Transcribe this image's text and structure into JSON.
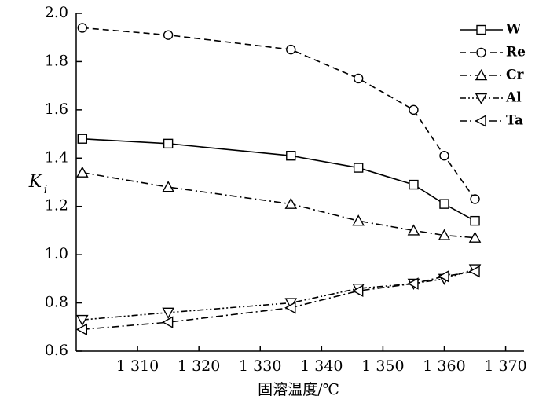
{
  "chart_data": {
    "type": "line",
    "x_label": "固溶温度/℃",
    "y_label": "K",
    "y_label_sub": "i",
    "x": [
      1301,
      1315,
      1335,
      1346,
      1355,
      1360,
      1365
    ],
    "series": [
      {
        "name": "W",
        "color": "#000000",
        "marker": "square",
        "dash": "solid",
        "values": [
          1.48,
          1.46,
          1.41,
          1.36,
          1.29,
          1.21,
          1.14
        ]
      },
      {
        "name": "Re",
        "color": "#000000",
        "marker": "circle",
        "dash": "dashed",
        "values": [
          1.94,
          1.91,
          1.85,
          1.73,
          1.6,
          1.41,
          1.23
        ]
      },
      {
        "name": "Cr",
        "color": "#000000",
        "marker": "triangle-up",
        "dash": "dash-dot",
        "values": [
          1.34,
          1.28,
          1.21,
          1.14,
          1.1,
          1.08,
          1.07
        ]
      },
      {
        "name": "Al",
        "color": "#000000",
        "marker": "triangle-down",
        "dash": "dash-dot-dot",
        "values": [
          0.73,
          0.76,
          0.8,
          0.86,
          0.88,
          0.9,
          0.94
        ]
      },
      {
        "name": "Ta",
        "color": "#000000",
        "marker": "triangle-left",
        "dash": "dash-dot",
        "values": [
          0.69,
          0.72,
          0.78,
          0.85,
          0.88,
          0.91,
          0.93
        ]
      }
    ],
    "xlim": [
      1300,
      1373
    ],
    "xticks": [
      {
        "value": 1310,
        "label": "1 310"
      },
      {
        "value": 1320,
        "label": "1 320"
      },
      {
        "value": 1330,
        "label": "1 330"
      },
      {
        "value": 1340,
        "label": "1 340"
      },
      {
        "value": 1350,
        "label": "1 350"
      },
      {
        "value": 1360,
        "label": "1 360"
      },
      {
        "value": 1370,
        "label": "1 370"
      }
    ],
    "ylim": [
      0.6,
      2.0
    ],
    "yticks": [
      0.6,
      0.8,
      {
        "value": 1.0,
        "label": "1.0"
      },
      1.2,
      1.4,
      1.6,
      1.8,
      {
        "value": 2.0,
        "label": "2.0"
      }
    ],
    "grid": false,
    "legend": "upper right"
  }
}
